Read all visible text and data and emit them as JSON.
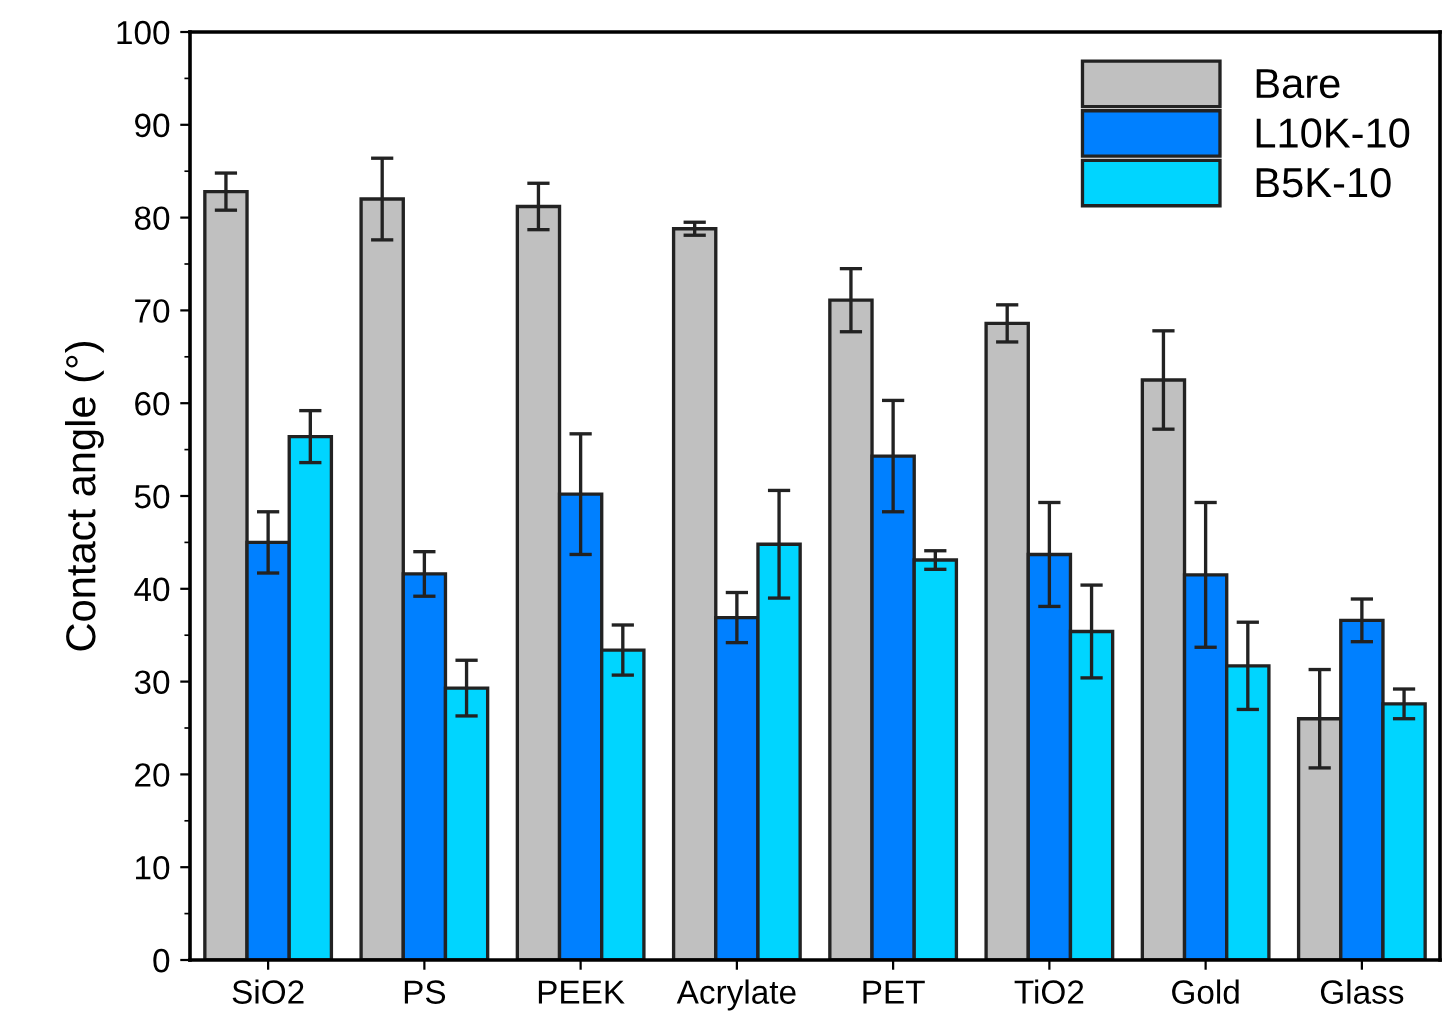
{
  "chart_data": {
    "type": "bar",
    "ylabel": "Contact angle (°)",
    "categories": [
      "SiO2",
      "PS",
      "PEEK",
      "Acrylate",
      "PET",
      "TiO2",
      "Gold",
      "Glass"
    ],
    "series": [
      {
        "name": "Bare",
        "color": "#c0c0c0",
        "values": [
          82.8,
          82,
          81.2,
          78.8,
          71.1,
          68.6,
          62.5,
          26
        ],
        "errors": [
          2,
          4.4,
          2.5,
          0.7,
          3.4,
          2,
          5.3,
          5.3
        ]
      },
      {
        "name": "L10K-10",
        "color": "#0080ff",
        "values": [
          45,
          41.6,
          50.2,
          36.9,
          54.3,
          43.7,
          41.5,
          36.6
        ],
        "errors": [
          3.3,
          2.4,
          6.5,
          2.7,
          6,
          5.6,
          7.8,
          2.3
        ]
      },
      {
        "name": "B5K-10",
        "color": "#00d5ff",
        "values": [
          56.4,
          29.3,
          33.4,
          44.8,
          43.1,
          35.4,
          31.7,
          27.6
        ],
        "errors": [
          2.8,
          3,
          2.7,
          5.8,
          1,
          5,
          4.7,
          1.6
        ]
      }
    ],
    "ylim": [
      0,
      100
    ],
    "yticks": [
      0,
      10,
      20,
      30,
      40,
      50,
      60,
      70,
      80,
      90,
      100
    ],
    "legend": "top right",
    "grid": false
  }
}
